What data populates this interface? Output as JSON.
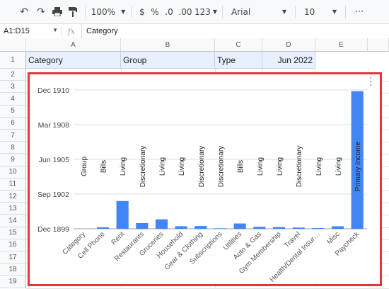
{
  "toolbar": {
    "zoom": "100%",
    "currency": "$",
    "percent": "%",
    "decimal_decrease": ".0",
    "decimal_increase": ".00",
    "number_format": "123",
    "font": "Arial",
    "font_size": "10",
    "more": "⋯"
  },
  "formula_bar": {
    "name_box": "A1:D15",
    "fx": "fx",
    "content": "Category"
  },
  "columns": [
    "A",
    "B",
    "C",
    "D",
    "E"
  ],
  "rows": [
    "1",
    "2",
    "3",
    "4",
    "5",
    "6",
    "7",
    "8",
    "9",
    "10",
    "11",
    "12",
    "13",
    "14",
    "15",
    "16",
    "17",
    "18",
    "19"
  ],
  "row1": [
    "Category",
    "Group",
    "Type",
    "Jun 2022"
  ],
  "chart_data": {
    "type": "bar",
    "y_tick_labels": [
      "Dec 1910",
      "Mar 1908",
      "Jun 1905",
      "Sep 1902",
      "Dec 1899"
    ],
    "categories": [
      "Category",
      "Cell Phone",
      "Rent",
      "Restaurants",
      "Groceries",
      "Household",
      "Gear & Clothing",
      "Subscriptions",
      "Utilities",
      "Auto & Gas",
      "Gym Membership",
      "Travel",
      "Health/Dental Insur…",
      "Misc",
      "Paycheck"
    ],
    "bar_labels": [
      "Group",
      "Bills",
      "Living",
      "Discretionary",
      "Living",
      "Living",
      "Discretionary",
      "Discretionary",
      "Bills",
      "Living",
      "Living",
      "Discretionary",
      "Living",
      "Living",
      "Primary Income"
    ],
    "values": [
      0,
      0.12,
      2.2,
      0.45,
      0.75,
      0.2,
      0.22,
      0.04,
      0.42,
      0.16,
      0.14,
      0.1,
      0.06,
      0.2,
      10.9
    ],
    "ylim": [
      0,
      11
    ],
    "grid": true,
    "bar_color": "#4285f4"
  }
}
